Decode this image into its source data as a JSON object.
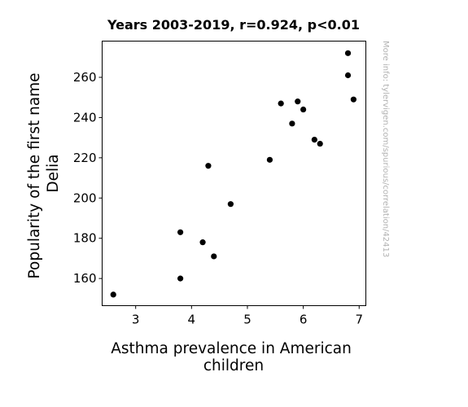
{
  "chart_data": {
    "type": "scatter",
    "title": "Years 2003-2019, r=0.924, p<0.01",
    "xlabel": [
      "Asthma prevalence in American",
      "children"
    ],
    "ylabel": [
      "Popularity of the first name",
      "Delia"
    ],
    "watermark": "More info: tylervigen.com/spurious/correlation/42413",
    "xlim": [
      2.4,
      7.12
    ],
    "ylim": [
      146.5,
      278
    ],
    "xticks": [
      3,
      4,
      5,
      6,
      7
    ],
    "yticks": [
      160,
      180,
      200,
      220,
      240,
      260
    ],
    "grid": false,
    "marker_color": "#000000",
    "points": [
      {
        "x": 2.6,
        "y": 152
      },
      {
        "x": 3.8,
        "y": 183
      },
      {
        "x": 3.8,
        "y": 160
      },
      {
        "x": 4.2,
        "y": 178
      },
      {
        "x": 4.3,
        "y": 216
      },
      {
        "x": 4.4,
        "y": 171
      },
      {
        "x": 4.7,
        "y": 197
      },
      {
        "x": 5.4,
        "y": 219
      },
      {
        "x": 5.6,
        "y": 247
      },
      {
        "x": 5.8,
        "y": 237
      },
      {
        "x": 5.9,
        "y": 248
      },
      {
        "x": 6.0,
        "y": 244
      },
      {
        "x": 6.2,
        "y": 229
      },
      {
        "x": 6.3,
        "y": 227
      },
      {
        "x": 6.8,
        "y": 272
      },
      {
        "x": 6.8,
        "y": 261
      },
      {
        "x": 6.9,
        "y": 249
      }
    ]
  }
}
